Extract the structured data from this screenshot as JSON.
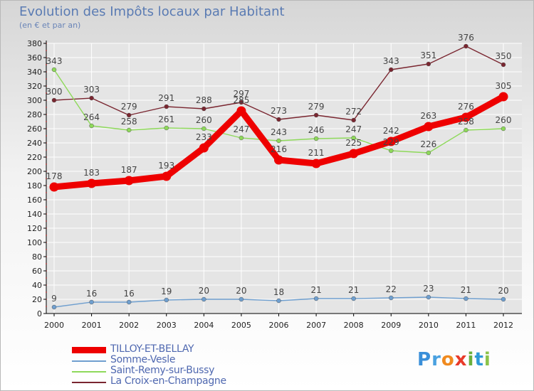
{
  "colors": {
    "title": "#5a7bb3",
    "axis": "#000000",
    "grid": "#ffffff",
    "tick_text": "#222222",
    "label_text": "#444444"
  },
  "chart_data": {
    "type": "line",
    "title": "Evolution des Impôts locaux par Habitant",
    "subtitle": "(en € et par an)",
    "xlabel": "",
    "ylabel": "",
    "ylim": [
      0,
      380
    ],
    "yticks": [
      0,
      20,
      40,
      60,
      80,
      100,
      120,
      140,
      160,
      180,
      200,
      220,
      240,
      260,
      280,
      300,
      320,
      340,
      360,
      380
    ],
    "x": [
      "2000",
      "2001",
      "2002",
      "2003",
      "2004",
      "2005",
      "2006",
      "2007",
      "2008",
      "2009",
      "2010",
      "2011",
      "2012"
    ],
    "grid": true,
    "legend_position": "bottom-left",
    "series": [
      {
        "name": "La Croix-en-Champagne",
        "color": "#7a2630",
        "values": [
          300,
          303,
          279,
          291,
          288,
          297,
          273,
          279,
          272,
          343,
          351,
          376,
          350
        ]
      },
      {
        "name": "Saint-Remy-sur-Bussy",
        "color": "#8ed95a",
        "values": [
          343,
          264,
          258,
          261,
          260,
          247,
          243,
          246,
          247,
          229,
          226,
          258,
          260
        ]
      },
      {
        "name": "Somme-Vesle",
        "color": "#6f9fcf",
        "values": [
          9,
          16,
          16,
          19,
          20,
          20,
          18,
          21,
          21,
          22,
          23,
          21,
          20
        ]
      },
      {
        "name": "TILLOY-ET-BELLAY",
        "color": "#ee0000",
        "values": [
          178,
          183,
          187,
          193,
          233,
          285,
          216,
          211,
          225,
          242,
          263,
          276,
          305
        ]
      }
    ]
  },
  "legend": {
    "items": [
      {
        "label": "TILLOY-ET-BELLAY",
        "color": "#ee0000"
      },
      {
        "label": "Somme-Vesle",
        "color": "#6f9fcf"
      },
      {
        "label": "Saint-Remy-sur-Bussy",
        "color": "#8ed95a"
      },
      {
        "label": "La Croix-en-Champagne",
        "color": "#7a2630"
      }
    ]
  },
  "logo": {
    "letters": [
      "P",
      "r",
      "o",
      "x",
      "i",
      "t",
      "i"
    ],
    "colors": [
      "#3a8fd9",
      "#4aa1e0",
      "#f08a1e",
      "#e83a2a",
      "#6ab03c",
      "#2f9ad8",
      "#8bc34a"
    ]
  }
}
